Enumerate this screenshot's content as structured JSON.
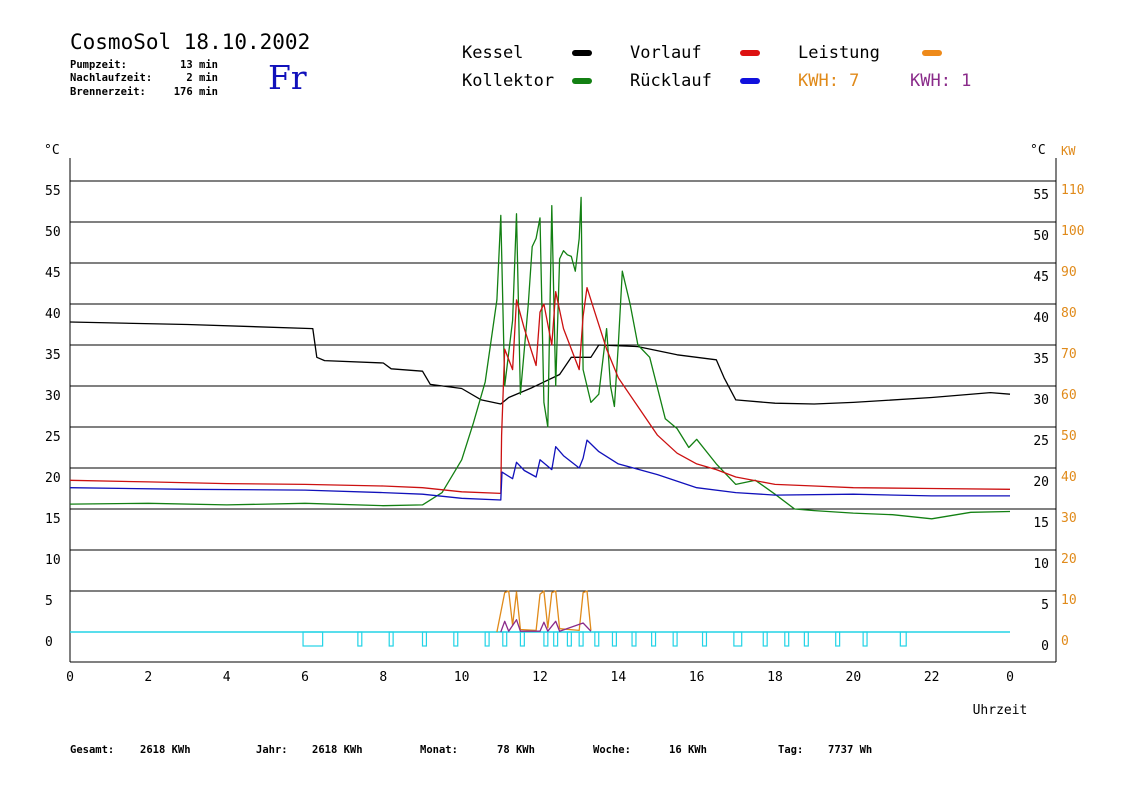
{
  "header": {
    "title": "CosmoSol 18.10.2002",
    "day": "Fr",
    "stats": [
      {
        "label": "Pumpzeit:",
        "value": "13 min"
      },
      {
        "label": "Nachlaufzeit:",
        "value": "2 min"
      },
      {
        "label": "Brennerzeit:",
        "value": "176 min"
      }
    ]
  },
  "legend": {
    "kessel": "Kessel",
    "kollektor": "Kollektor",
    "vorlauf": "Vorlauf",
    "ruecklauf": "Rücklauf",
    "leistung": "Leistung",
    "kwh_orange": "KWH: 7",
    "kwh_purple": "KWH: 1"
  },
  "colors": {
    "kessel": "#000000",
    "kollektor": "#138013",
    "vorlauf": "#cc1111",
    "ruecklauf": "#1111bb",
    "leistung": "#e08a1a",
    "kwh_purple": "#8a2b8a",
    "pump": "#22d3e6",
    "axis_right_kw": "#e08a1a"
  },
  "footer": [
    {
      "label": "Gesamt:",
      "value": "2618 KWh"
    },
    {
      "label": "Jahr:",
      "value": "2618 KWh"
    },
    {
      "label": "Monat:",
      "value": "78 KWh"
    },
    {
      "label": "Woche:",
      "value": "16 KWh"
    },
    {
      "label": "Tag:",
      "value": "7737 Wh"
    }
  ],
  "chart_data": {
    "type": "line",
    "xlabel": "Uhrzeit",
    "ylabel_left": "°C",
    "ylabel_right": "°C",
    "ylabel_right2": "KW",
    "xlim": [
      0,
      24
    ],
    "ylim": [
      0,
      55
    ],
    "x_ticks": [
      "0",
      "2",
      "4",
      "6",
      "8",
      "10",
      "12",
      "14",
      "16",
      "18",
      "20",
      "22",
      "0"
    ],
    "y_ticks": [
      "0",
      "5",
      "10",
      "15",
      "20",
      "25",
      "30",
      "35",
      "40",
      "45",
      "50",
      "55"
    ],
    "y_ticks_right": [
      "0",
      "5",
      "10",
      "15",
      "20",
      "25",
      "30",
      "35",
      "40",
      "45",
      "50",
      "55"
    ],
    "y_ticks_kw": [
      "0",
      "10",
      "20",
      "30",
      "40",
      "50",
      "60",
      "70",
      "80",
      "90",
      "100",
      "110"
    ],
    "grid": true,
    "series": [
      {
        "name": "Kessel",
        "color": "#000000",
        "points": [
          [
            0,
            37.8
          ],
          [
            3,
            37.5
          ],
          [
            6.2,
            37.0
          ],
          [
            6.3,
            33.5
          ],
          [
            6.5,
            33.1
          ],
          [
            8,
            32.8
          ],
          [
            8.2,
            32.1
          ],
          [
            9,
            31.8
          ],
          [
            9.2,
            30.2
          ],
          [
            10,
            29.7
          ],
          [
            10.5,
            28.3
          ],
          [
            11,
            27.8
          ],
          [
            11.2,
            28.6
          ],
          [
            11.8,
            29.8
          ],
          [
            12.5,
            31.4
          ],
          [
            12.8,
            33.5
          ],
          [
            13.3,
            33.5
          ],
          [
            13.5,
            35.0
          ],
          [
            14.5,
            34.8
          ],
          [
            15.5,
            33.8
          ],
          [
            16.5,
            33.2
          ],
          [
            16.7,
            31.0
          ],
          [
            17,
            28.3
          ],
          [
            18,
            27.9
          ],
          [
            19,
            27.8
          ],
          [
            20,
            28.0
          ],
          [
            22,
            28.6
          ],
          [
            23.5,
            29.2
          ],
          [
            24,
            29.0
          ]
        ]
      },
      {
        "name": "Kollektor",
        "color": "#138013",
        "points": [
          [
            0,
            15.6
          ],
          [
            2,
            15.7
          ],
          [
            4,
            15.5
          ],
          [
            6,
            15.7
          ],
          [
            8,
            15.4
          ],
          [
            9,
            15.5
          ],
          [
            9.5,
            17.0
          ],
          [
            10,
            21.0
          ],
          [
            10.3,
            25.5
          ],
          [
            10.6,
            30.5
          ],
          [
            10.9,
            40.5
          ],
          [
            11.0,
            50.8
          ],
          [
            11.1,
            30.0
          ],
          [
            11.3,
            38.0
          ],
          [
            11.4,
            51.0
          ],
          [
            11.5,
            29.0
          ],
          [
            11.7,
            40.0
          ],
          [
            11.8,
            47.0
          ],
          [
            11.9,
            48.0
          ],
          [
            12.0,
            50.5
          ],
          [
            12.1,
            28.0
          ],
          [
            12.2,
            25.0
          ],
          [
            12.3,
            52.0
          ],
          [
            12.4,
            30.0
          ],
          [
            12.5,
            45.5
          ],
          [
            12.6,
            46.5
          ],
          [
            12.7,
            46.0
          ],
          [
            12.8,
            45.8
          ],
          [
            12.9,
            44.0
          ],
          [
            13.0,
            48.0
          ],
          [
            13.05,
            53.0
          ],
          [
            13.1,
            32.0
          ],
          [
            13.3,
            28.0
          ],
          [
            13.5,
            29.0
          ],
          [
            13.7,
            37.0
          ],
          [
            13.8,
            30.0
          ],
          [
            13.9,
            27.5
          ],
          [
            14.0,
            35.0
          ],
          [
            14.1,
            44.0
          ],
          [
            14.3,
            40.0
          ],
          [
            14.5,
            35.0
          ],
          [
            14.8,
            33.5
          ],
          [
            15.2,
            26.0
          ],
          [
            15.5,
            24.8
          ],
          [
            15.8,
            22.5
          ],
          [
            16.0,
            23.5
          ],
          [
            16.5,
            20.5
          ],
          [
            17.0,
            18.0
          ],
          [
            17.5,
            18.5
          ],
          [
            18,
            16.8
          ],
          [
            18.5,
            15.0
          ],
          [
            19,
            14.8
          ],
          [
            20,
            14.5
          ],
          [
            21,
            14.3
          ],
          [
            22,
            13.8
          ],
          [
            23,
            14.6
          ],
          [
            24,
            14.7
          ]
        ]
      },
      {
        "name": "Vorlauf",
        "color": "#cc1111",
        "points": [
          [
            0,
            18.5
          ],
          [
            2,
            18.3
          ],
          [
            4,
            18.1
          ],
          [
            6,
            18.0
          ],
          [
            8,
            17.8
          ],
          [
            9,
            17.6
          ],
          [
            10,
            17.1
          ],
          [
            11,
            16.9
          ],
          [
            11.02,
            24.0
          ],
          [
            11.1,
            34.5
          ],
          [
            11.3,
            32.0
          ],
          [
            11.4,
            40.5
          ],
          [
            11.6,
            37.0
          ],
          [
            11.9,
            32.5
          ],
          [
            12.0,
            39.0
          ],
          [
            12.1,
            40.0
          ],
          [
            12.3,
            35.0
          ],
          [
            12.4,
            41.5
          ],
          [
            12.6,
            37.0
          ],
          [
            13.0,
            32.0
          ],
          [
            13.1,
            38.5
          ],
          [
            13.2,
            42.0
          ],
          [
            13.4,
            39.0
          ],
          [
            13.7,
            34.5
          ],
          [
            14.0,
            31.0
          ],
          [
            14.5,
            27.5
          ],
          [
            15.0,
            24.0
          ],
          [
            15.5,
            21.8
          ],
          [
            16,
            20.5
          ],
          [
            16.5,
            19.8
          ],
          [
            17,
            18.9
          ],
          [
            18,
            18.0
          ],
          [
            19,
            17.8
          ],
          [
            20,
            17.6
          ],
          [
            22,
            17.5
          ],
          [
            24,
            17.4
          ]
        ]
      },
      {
        "name": "Rücklauf",
        "color": "#1111bb",
        "points": [
          [
            0,
            17.6
          ],
          [
            3,
            17.4
          ],
          [
            6,
            17.3
          ],
          [
            8,
            17.0
          ],
          [
            9,
            16.8
          ],
          [
            10,
            16.3
          ],
          [
            11,
            16.1
          ],
          [
            11.03,
            19.5
          ],
          [
            11.3,
            18.7
          ],
          [
            11.4,
            20.7
          ],
          [
            11.6,
            19.7
          ],
          [
            11.9,
            18.9
          ],
          [
            12.0,
            21.0
          ],
          [
            12.3,
            19.8
          ],
          [
            12.4,
            22.6
          ],
          [
            12.6,
            21.5
          ],
          [
            13.0,
            20.0
          ],
          [
            13.1,
            21.2
          ],
          [
            13.2,
            23.4
          ],
          [
            13.5,
            22.0
          ],
          [
            14,
            20.5
          ],
          [
            15,
            19.2
          ],
          [
            16,
            17.6
          ],
          [
            17,
            17.0
          ],
          [
            18,
            16.7
          ],
          [
            20,
            16.8
          ],
          [
            22,
            16.6
          ],
          [
            24,
            16.6
          ]
        ]
      },
      {
        "name": "Leistung",
        "color": "#e08a1a",
        "points": [
          [
            10.9,
            0
          ],
          [
            11.1,
            4.8
          ],
          [
            11.2,
            5.0
          ],
          [
            11.3,
            0.8
          ],
          [
            11.4,
            4.9
          ],
          [
            11.5,
            0.3
          ],
          [
            11.9,
            0.2
          ],
          [
            12.0,
            4.6
          ],
          [
            12.1,
            5.0
          ],
          [
            12.2,
            0.5
          ],
          [
            12.3,
            4.8
          ],
          [
            12.4,
            5.0
          ],
          [
            12.5,
            0.4
          ],
          [
            13.0,
            0.2
          ],
          [
            13.1,
            4.8
          ],
          [
            13.2,
            5.0
          ],
          [
            13.3,
            0.2
          ]
        ]
      },
      {
        "name": "KWH",
        "color": "#8a2b8a",
        "points": [
          [
            11.0,
            0
          ],
          [
            11.1,
            1.3
          ],
          [
            11.2,
            0.1
          ],
          [
            11.4,
            1.5
          ],
          [
            11.5,
            0.1
          ],
          [
            12.0,
            0.1
          ],
          [
            12.1,
            1.2
          ],
          [
            12.2,
            0.1
          ],
          [
            12.4,
            1.3
          ],
          [
            12.5,
            0.1
          ],
          [
            13.1,
            1.1
          ],
          [
            13.3,
            0.1
          ]
        ]
      }
    ],
    "pump_on_intervals": [
      [
        5.95,
        6.45
      ],
      [
        7.35,
        7.45
      ],
      [
        8.15,
        8.25
      ],
      [
        9.0,
        9.1
      ],
      [
        9.8,
        9.9
      ],
      [
        10.6,
        10.7
      ],
      [
        11.05,
        11.15
      ],
      [
        11.5,
        11.6
      ],
      [
        12.1,
        12.2
      ],
      [
        12.35,
        12.45
      ],
      [
        12.7,
        12.8
      ],
      [
        13.0,
        13.1
      ],
      [
        13.4,
        13.5
      ],
      [
        13.85,
        13.95
      ],
      [
        14.35,
        14.45
      ],
      [
        14.85,
        14.95
      ],
      [
        15.4,
        15.5
      ],
      [
        16.15,
        16.25
      ],
      [
        16.95,
        17.15
      ],
      [
        17.7,
        17.8
      ],
      [
        18.25,
        18.35
      ],
      [
        18.75,
        18.85
      ],
      [
        19.55,
        19.65
      ],
      [
        20.25,
        20.35
      ],
      [
        21.2,
        21.35
      ]
    ]
  }
}
